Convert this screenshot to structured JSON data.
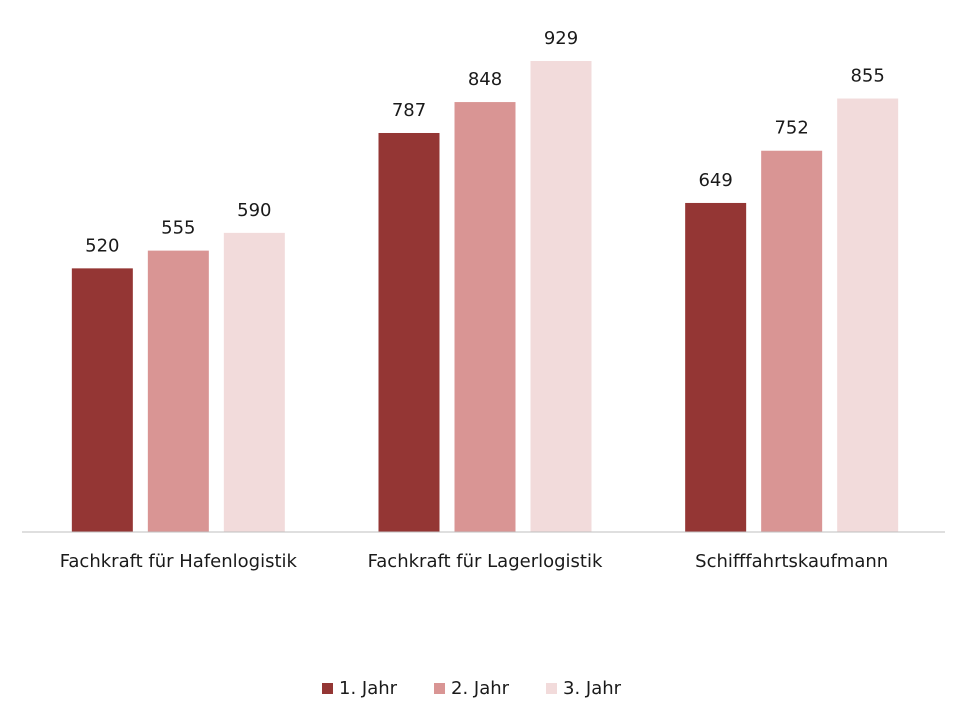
{
  "chart_data": {
    "type": "bar",
    "categories": [
      "Fachkraft für Hafenlogistik",
      "Fachkraft für Lagerlogistik",
      "Schifffahrtskaufmann"
    ],
    "series": [
      {
        "name": "1. Jahr",
        "color": "#943634",
        "values": [
          520,
          787,
          649
        ]
      },
      {
        "name": "2. Jahr",
        "color": "#d99594",
        "values": [
          555,
          848,
          752
        ]
      },
      {
        "name": "3. Jahr",
        "color": "#f2dbdb",
        "values": [
          590,
          929,
          855
        ]
      }
    ],
    "ylim": [
      0,
      1000
    ],
    "legend": "bottom"
  }
}
